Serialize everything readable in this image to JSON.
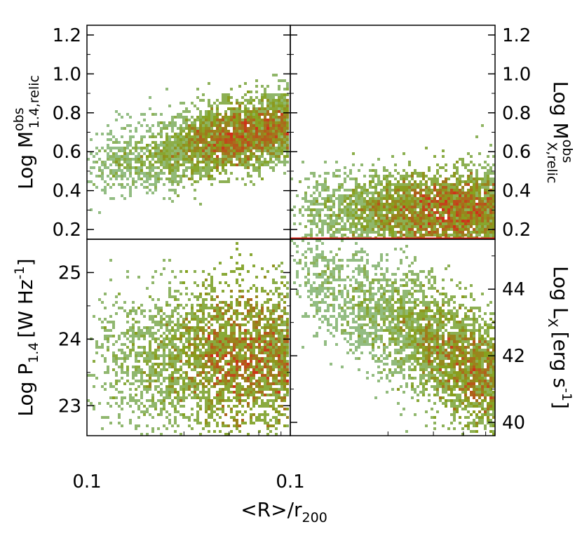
{
  "figure": {
    "xlabel": "<R>/r",
    "xlabel_sub": "200"
  },
  "colors": {
    "low": "#9fd6e3",
    "mid": "#86a21e",
    "high": "#d0301a",
    "axis": "#000000",
    "hline": "#e0251b"
  },
  "chart_data": [
    {
      "panel": "top-left",
      "type": "heatmap",
      "ylabel_main": "Log  M",
      "ylabel_sup": "obs",
      "ylabel_sub": "1.4,relic",
      "ylabel_side": "left",
      "xlim": [
        0.1,
        1.0
      ],
      "ylim": [
        0.15,
        1.25
      ],
      "yticks": [
        0.2,
        0.4,
        0.6,
        0.8,
        1.0,
        1.2
      ],
      "ytick_labels": [
        "0.2",
        "0.4",
        "0.6",
        "0.8",
        "1.0",
        "1.2"
      ],
      "xtick_labels": [
        "0.1"
      ],
      "density": {
        "trend": "increasing",
        "y_at_xmin": 0.5,
        "y_at_xmax": 0.74,
        "spread": 0.09,
        "peak_x": 0.72
      }
    },
    {
      "panel": "top-right",
      "type": "heatmap",
      "ylabel_main": "Log  M",
      "ylabel_sup": "obs",
      "ylabel_sub": "X,relic",
      "ylabel_side": "right",
      "xlim": [
        0.1,
        1.0
      ],
      "ylim": [
        0.15,
        1.25
      ],
      "yticks": [
        0.2,
        0.4,
        0.6,
        0.8,
        1.0,
        1.2
      ],
      "ytick_labels": [
        "0.2",
        "0.4",
        "0.6",
        "0.8",
        "1.0",
        "1.2"
      ],
      "xtick_labels": [
        "0.1"
      ],
      "floor_line_y": 0.15,
      "density": {
        "trend": "flat",
        "y_center": 0.3,
        "spread": 0.1,
        "peak_x": 0.7
      }
    },
    {
      "panel": "bottom-left",
      "type": "heatmap",
      "ylabel_main": "Log  P",
      "ylabel_sub": "1.4",
      "ylabel_unit": "[W Hz",
      "ylabel_sup": "-1",
      "ylabel_close": "]",
      "ylabel_side": "left",
      "xlim": [
        0.1,
        1.0
      ],
      "ylim": [
        22.55,
        25.5
      ],
      "yticks": [
        23,
        24,
        25
      ],
      "ytick_labels": [
        "23",
        "24",
        "25"
      ],
      "xtick_labels": [
        "0.1",
        "0.1"
      ],
      "density": {
        "trend": "flat",
        "y_center": 23.7,
        "spread": 0.55,
        "peak_x": 0.75
      }
    },
    {
      "panel": "bottom-right",
      "type": "heatmap",
      "ylabel_main": "Log  L",
      "ylabel_sub": "X",
      "ylabel_unit": "[erg s",
      "ylabel_sup": "-1",
      "ylabel_close": "]",
      "ylabel_side": "right",
      "xlim": [
        0.1,
        1.0
      ],
      "ylim": [
        39.6,
        45.5
      ],
      "yticks": [
        40,
        42,
        44
      ],
      "ytick_labels": [
        "40",
        "42",
        "44"
      ],
      "xtick_labels": [],
      "density": {
        "trend": "decreasing",
        "y_at_xmin": 44.8,
        "y_at_xmax": 41.2,
        "spread": 0.9,
        "peak_x": 0.85
      }
    }
  ]
}
